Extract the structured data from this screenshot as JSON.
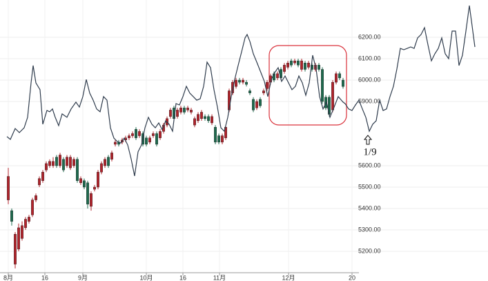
{
  "chart_data": {
    "type": "candlestick",
    "xlim": [
      -0.4,
      135.6
    ],
    "xticks": [
      {
        "value": 0,
        "label": "8月"
      },
      {
        "value": 10.6,
        "label": "16"
      },
      {
        "value": 21.6,
        "label": "9月"
      },
      {
        "value": 40,
        "label": "10月"
      },
      {
        "value": 50.6,
        "label": "16"
      },
      {
        "value": 61.2,
        "label": "11月"
      },
      {
        "value": 81.2,
        "label": "12月"
      },
      {
        "value": 99.6,
        "label": "20"
      }
    ],
    "ylim": [
      5100,
      6370
    ],
    "yticks": [
      {
        "value": 5200,
        "label": "5200.00"
      },
      {
        "value": 5300,
        "label": "5300.00"
      },
      {
        "value": 5400,
        "label": "5400.00"
      },
      {
        "value": 5500,
        "label": "5500.00"
      },
      {
        "value": 5600,
        "label": "5600.00"
      },
      {
        "value": 5900,
        "label": "5900.00"
      },
      {
        "value": 6000,
        "label": "6000.00"
      },
      {
        "value": 6100,
        "label": "6100.00"
      },
      {
        "value": 6200,
        "label": "6200.00"
      }
    ],
    "grid": true,
    "up_color": "#b3232b",
    "down_color": "#1d6b4e",
    "open": [
      5440,
      5390,
      5140,
      5210,
      5260,
      5310,
      5340,
      5370,
      5440,
      5510,
      5530,
      5580,
      5600,
      5600,
      5640,
      5600,
      5630,
      5600,
      5590,
      5600,
      5630,
      5520,
      5530,
      5520,
      5410,
      5490,
      5500,
      5570,
      5600,
      5640,
      5630,
      5700,
      5710,
      5710,
      5720,
      5730,
      5740,
      5770,
      5740,
      5750,
      5730,
      5710,
      5740,
      5750,
      5730,
      5760,
      5790,
      5830,
      5870,
      5830,
      5850,
      5870,
      5860,
      5850,
      5790,
      5810,
      5820,
      5830,
      5830,
      5800,
      5780,
      5740,
      5710,
      5730,
      5860,
      5940,
      5970,
      6000,
      5990,
      5990,
      5950,
      5910,
      5870,
      5910,
      5940,
      5960,
      5990,
      6030,
      6010,
      6050,
      6040,
      6060,
      6090,
      6080,
      6090,
      6050,
      6080,
      6060,
      6070,
      6050,
      6070,
      6050,
      5920,
      5920,
      5860,
      5990,
      6030,
      6000
    ],
    "high": [
      5590,
      5400,
      5290,
      5330,
      5340,
      5360,
      5370,
      5450,
      5470,
      5550,
      5580,
      5620,
      5630,
      5640,
      5650,
      5660,
      5640,
      5650,
      5650,
      5640,
      5640,
      5550,
      5540,
      5530,
      5480,
      5510,
      5580,
      5620,
      5640,
      5650,
      5670,
      5720,
      5720,
      5730,
      5740,
      5750,
      5760,
      5780,
      5770,
      5760,
      5740,
      5740,
      5760,
      5760,
      5770,
      5800,
      5830,
      5870,
      5880,
      5870,
      5880,
      5880,
      5880,
      5870,
      5830,
      5850,
      5860,
      5840,
      5840,
      5840,
      5790,
      5750,
      5750,
      5790,
      5960,
      6000,
      6010,
      6010,
      6010,
      6000,
      5960,
      5920,
      5910,
      5920,
      5960,
      6000,
      6030,
      6040,
      6040,
      6060,
      6080,
      6090,
      6100,
      6100,
      6100,
      6100,
      6090,
      6090,
      6080,
      6080,
      6080,
      6060,
      5930,
      5930,
      6000,
      6040,
      6040,
      6010
    ],
    "low": [
      5420,
      5320,
      5120,
      5200,
      5250,
      5300,
      5330,
      5360,
      5430,
      5500,
      5520,
      5570,
      5590,
      5590,
      5590,
      5590,
      5570,
      5590,
      5580,
      5590,
      5520,
      5510,
      5490,
      5400,
      5390,
      5480,
      5490,
      5560,
      5590,
      5590,
      5620,
      5690,
      5690,
      5700,
      5710,
      5720,
      5730,
      5720,
      5730,
      5690,
      5690,
      5700,
      5730,
      5690,
      5720,
      5750,
      5780,
      5820,
      5810,
      5820,
      5840,
      5840,
      5850,
      5840,
      5780,
      5800,
      5810,
      5810,
      5800,
      5790,
      5700,
      5700,
      5700,
      5720,
      5850,
      5930,
      5960,
      5980,
      5980,
      5970,
      5930,
      5850,
      5860,
      5870,
      5930,
      5950,
      5980,
      5990,
      6000,
      6000,
      6030,
      6050,
      6060,
      6070,
      6060,
      6040,
      6040,
      6050,
      6040,
      6040,
      6040,
      5890,
      5860,
      5830,
      5850,
      5980,
      6000,
      5960
    ],
    "close": [
      5550,
      5340,
      5280,
      5310,
      5320,
      5350,
      5360,
      5440,
      5460,
      5540,
      5570,
      5610,
      5620,
      5620,
      5600,
      5650,
      5580,
      5640,
      5640,
      5630,
      5530,
      5540,
      5500,
      5420,
      5470,
      5500,
      5570,
      5610,
      5630,
      5600,
      5660,
      5710,
      5700,
      5720,
      5730,
      5740,
      5750,
      5730,
      5760,
      5700,
      5700,
      5730,
      5750,
      5700,
      5760,
      5790,
      5820,
      5860,
      5820,
      5860,
      5870,
      5850,
      5870,
      5860,
      5820,
      5840,
      5850,
      5820,
      5810,
      5830,
      5710,
      5710,
      5740,
      5780,
      5950,
      5990,
      6000,
      5990,
      6000,
      5980,
      5940,
      5860,
      5900,
      5880,
      5950,
      5990,
      6020,
      6000,
      6030,
      6010,
      6070,
      6080,
      6070,
      6090,
      6070,
      6090,
      6050,
      6080,
      6050,
      6070,
      6050,
      5900,
      5870,
      5840,
      5990,
      6030,
      6010,
      5970
    ],
    "overlay": {
      "type": "line",
      "color": "#2e3b4c",
      "x": [
        -0.4,
        0.6,
        2,
        3.2,
        4.6,
        5.6,
        6.6,
        7.2,
        8,
        9.2,
        10,
        11.2,
        12,
        12.8,
        13.6,
        14.6,
        15.6,
        17,
        18.2,
        19.6,
        20.6,
        21.6,
        22.6,
        23.6,
        24.6,
        25.6,
        26.6,
        27.6,
        28.6,
        29.6,
        30.6,
        31.6,
        32.6,
        33.6,
        34.6,
        35.6,
        36.6,
        37.6,
        38.6,
        39.6,
        40.6,
        41.6,
        42.6,
        43.6,
        44.6,
        45.6,
        46.6,
        47.6,
        48.6,
        49.6,
        50.6,
        51.6,
        52.6,
        53.6,
        54.6,
        55.6,
        56.6,
        57.6,
        58.6,
        59.6,
        60.6,
        61.6,
        62.6,
        63.6,
        64.6,
        65.6,
        66.6,
        67.6,
        68.6,
        69.2,
        70,
        71,
        72,
        73.2,
        74.2,
        75.2,
        76.2,
        77.2,
        78.2,
        79.2,
        80.2,
        81.2,
        82.2,
        83.2,
        84.2,
        85.2,
        86.2,
        87.2,
        88.2,
        89.2,
        90.2,
        91.2,
        92.2,
        93.2,
        94.2,
        95.6,
        97,
        97.6,
        98.6,
        99.6,
        100.6,
        101.6,
        102.6,
        103.6,
        104.6,
        105.6,
        106.6,
        107.6,
        108.6,
        109.6,
        110.6,
        111.6,
        112.6,
        113.6,
        114.6,
        115.6,
        116.6,
        117.6,
        118.6,
        119.6,
        120.6,
        121.6,
        122.6,
        123.6,
        124.6,
        125.6,
        126.6,
        127.6,
        128.6,
        129.6,
        130.6,
        131.6,
        132.6,
        133.6,
        134.2,
        135.2
      ],
      "values": [
        5736,
        5723,
        5774,
        5755,
        5777,
        5826,
        5987,
        6068,
        5987,
        5955,
        5794,
        5858,
        5852,
        5865,
        5826,
        5787,
        5842,
        5826,
        5865,
        5897,
        5874,
        5923,
        6003,
        5939,
        5906,
        5865,
        5852,
        5923,
        5906,
        5777,
        5729,
        5713,
        5706,
        5729,
        5697,
        5632,
        5552,
        5665,
        5697,
        5777,
        5826,
        5794,
        5777,
        5800,
        5768,
        5810,
        5794,
        5761,
        5890,
        5884,
        5923,
        5971,
        5939,
        5923,
        5906,
        5913,
        5971,
        6084,
        6058,
        5955,
        5874,
        5777,
        5761,
        5826,
        5923,
        6003,
        6068,
        6132,
        6197,
        6213,
        6181,
        6123,
        6084,
        6035,
        5994,
        5923,
        6003,
        6035,
        6058,
        5994,
        6019,
        5987,
        5955,
        5971,
        6019,
        5987,
        5929,
        5987,
        6116,
        6052,
        5923,
        5865,
        5897,
        5826,
        5865,
        5923,
        5897,
        5890,
        5865,
        5858,
        5884,
        5906,
        5865,
        5826,
        5761,
        5794,
        5810,
        5906,
        5858,
        5865,
        5923,
        5971,
        6052,
        6148,
        6142,
        6148,
        6155,
        6148,
        6197,
        6213,
        6245,
        6165,
        6090,
        6123,
        6148,
        6197,
        6123,
        6100,
        6229,
        6229,
        6068,
        6116,
        6229,
        6348,
        6277,
        6155
      ]
    },
    "annotations": [
      {
        "text": "1/9"
      }
    ]
  }
}
